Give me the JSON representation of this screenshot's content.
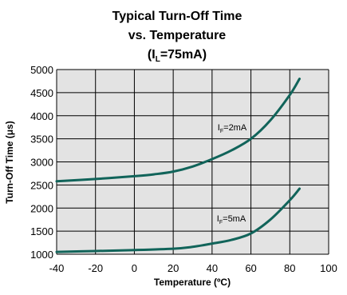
{
  "chart_data": {
    "type": "line",
    "title_lines": [
      "Typical Turn-Off Time",
      "vs. Temperature"
    ],
    "title_condition": {
      "prefix": "(I",
      "sub": "L",
      "suffix": "=75mA)"
    },
    "xlabel": "Temperature (ºC)",
    "ylabel": "Turn-Off Time (μs)",
    "xlim": [
      -40,
      100
    ],
    "ylim": [
      1000,
      5000
    ],
    "xticks": [
      -40,
      -20,
      0,
      20,
      40,
      60,
      80,
      100
    ],
    "yticks": [
      1000,
      1500,
      2000,
      2500,
      3000,
      3500,
      4000,
      4500,
      5000
    ],
    "grid": true,
    "colors": {
      "series": "#11645a",
      "grid": "#000000",
      "plot_bg": "#e3e3e3"
    },
    "series": [
      {
        "label": {
          "prefix": "I",
          "sub": "F",
          "suffix": "=2mA"
        },
        "x": [
          -40,
          -20,
          0,
          10,
          20,
          30,
          40,
          50,
          60,
          70,
          80,
          85
        ],
        "y": [
          2580,
          2630,
          2690,
          2730,
          2790,
          2900,
          3060,
          3250,
          3500,
          3900,
          4450,
          4800
        ]
      },
      {
        "label": {
          "prefix": "I",
          "sub": "F",
          "suffix": "=5mA"
        },
        "x": [
          -40,
          -20,
          0,
          20,
          30,
          40,
          50,
          60,
          70,
          80,
          85
        ],
        "y": [
          1050,
          1070,
          1090,
          1120,
          1160,
          1230,
          1310,
          1450,
          1750,
          2170,
          2420
        ]
      }
    ]
  }
}
